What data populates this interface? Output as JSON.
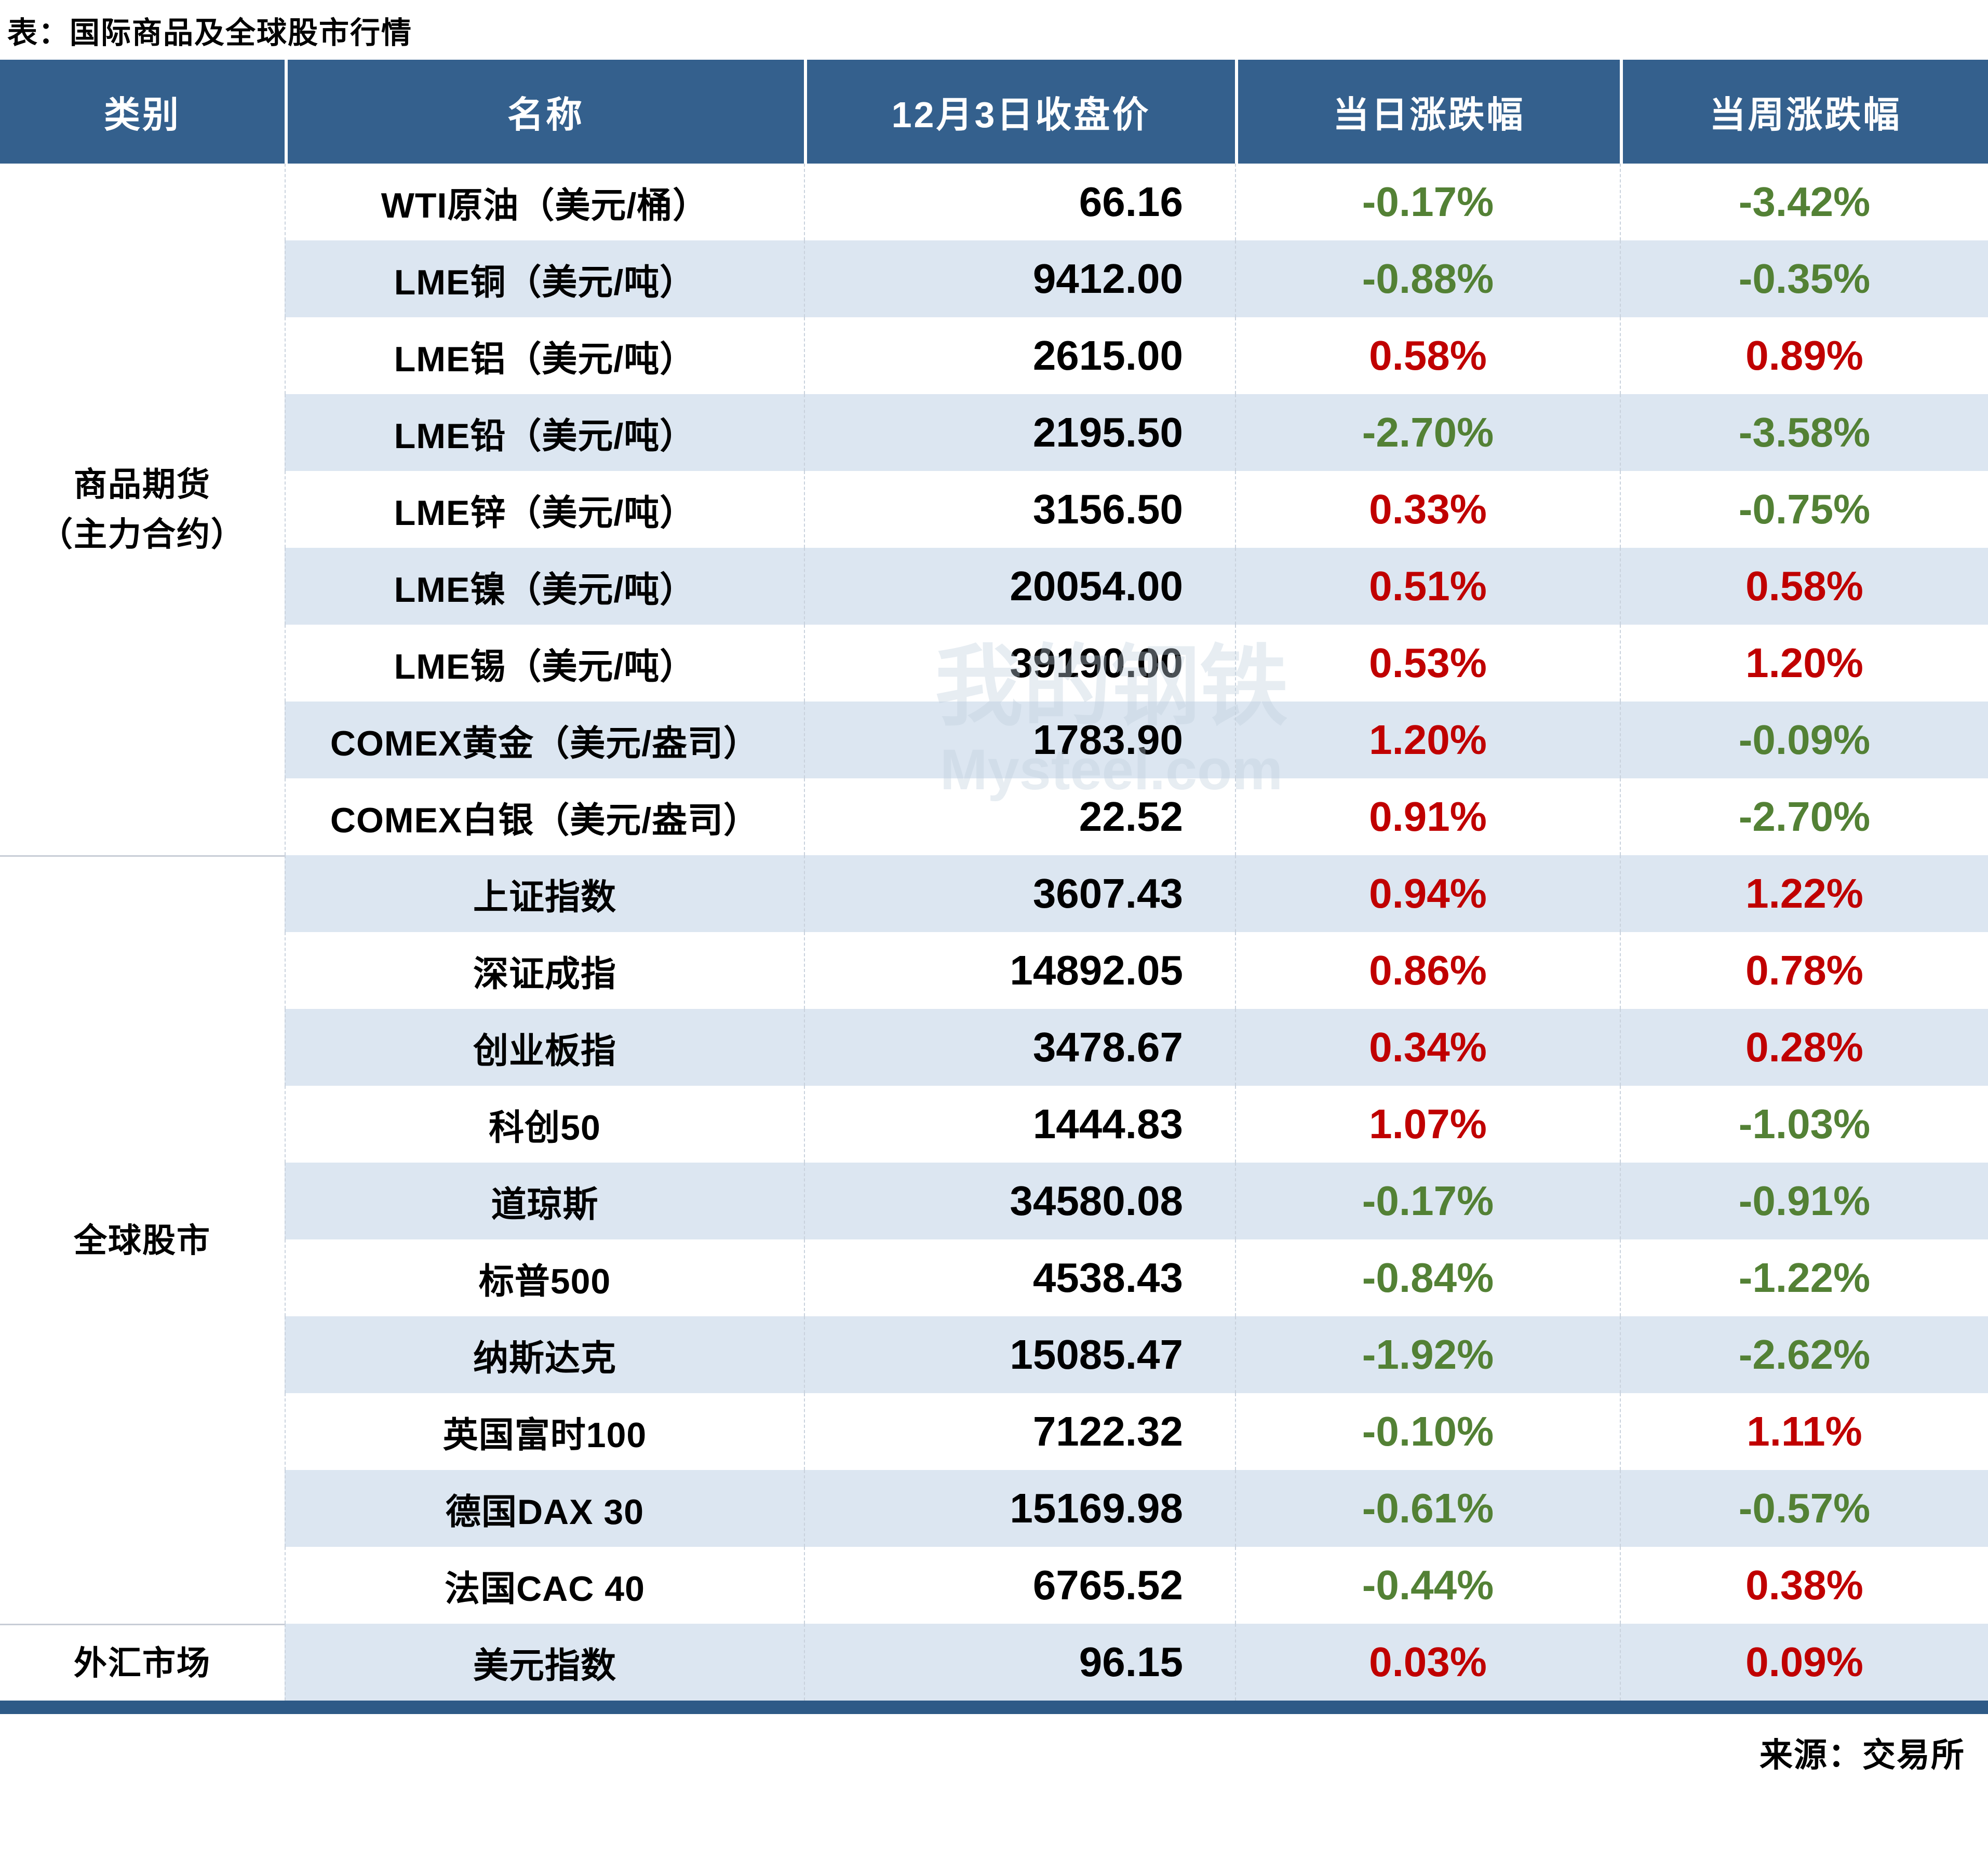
{
  "chart_data": {
    "type": "table",
    "title": "表：国际商品及全球股市行情",
    "columns": [
      "类别",
      "名称",
      "12月3日收盘价",
      "当日涨跌幅",
      "当周涨跌幅"
    ],
    "groups": [
      {
        "label": "商品期货\n（主力合约）",
        "span": 9
      },
      {
        "label": "全球股市",
        "span": 10
      },
      {
        "label": "外汇市场",
        "span": 1
      }
    ],
    "rows": [
      {
        "name": "WTI原油（美元/桶）",
        "close": "66.16",
        "day": "-0.17%",
        "week": "-3.42%"
      },
      {
        "name": "LME铜（美元/吨）",
        "close": "9412.00",
        "day": "-0.88%",
        "week": "-0.35%"
      },
      {
        "name": "LME铝（美元/吨）",
        "close": "2615.00",
        "day": "0.58%",
        "week": "0.89%"
      },
      {
        "name": "LME铅（美元/吨）",
        "close": "2195.50",
        "day": "-2.70%",
        "week": "-3.58%"
      },
      {
        "name": "LME锌（美元/吨）",
        "close": "3156.50",
        "day": "0.33%",
        "week": "-0.75%"
      },
      {
        "name": "LME镍（美元/吨）",
        "close": "20054.00",
        "day": "0.51%",
        "week": "0.58%"
      },
      {
        "name": "LME锡（美元/吨）",
        "close": "39190.00",
        "day": "0.53%",
        "week": "1.20%"
      },
      {
        "name": "COMEX黄金（美元/盎司）",
        "close": "1783.90",
        "day": "1.20%",
        "week": "-0.09%"
      },
      {
        "name": "COMEX白银（美元/盎司）",
        "close": "22.52",
        "day": "0.91%",
        "week": "-2.70%"
      },
      {
        "name": "上证指数",
        "close": "3607.43",
        "day": "0.94%",
        "week": "1.22%"
      },
      {
        "name": "深证成指",
        "close": "14892.05",
        "day": "0.86%",
        "week": "0.78%"
      },
      {
        "name": "创业板指",
        "close": "3478.67",
        "day": "0.34%",
        "week": "0.28%"
      },
      {
        "name": "科创50",
        "close": "1444.83",
        "day": "1.07%",
        "week": "-1.03%"
      },
      {
        "name": "道琼斯",
        "close": "34580.08",
        "day": "-0.17%",
        "week": "-0.91%"
      },
      {
        "name": "标普500",
        "close": "4538.43",
        "day": "-0.84%",
        "week": "-1.22%"
      },
      {
        "name": "纳斯达克",
        "close": "15085.47",
        "day": "-1.92%",
        "week": "-2.62%"
      },
      {
        "name": "英国富时100",
        "close": "7122.32",
        "day": "-0.10%",
        "week": "1.11%"
      },
      {
        "name": "德国DAX 30",
        "close": "15169.98",
        "day": "-0.61%",
        "week": "-0.57%"
      },
      {
        "name": "法国CAC 40",
        "close": "6765.52",
        "day": "-0.44%",
        "week": "0.38%"
      },
      {
        "name": "美元指数",
        "close": "96.15",
        "day": "0.03%",
        "week": "0.09%"
      }
    ]
  },
  "footer": {
    "source": "来源：交易所"
  },
  "watermark": {
    "line1": "我的钢铁",
    "line2": "Mysteel.com"
  },
  "colors": {
    "header_bg": "#34608d",
    "stripe_bg": "#dce6f1",
    "positive_red": "#c00000",
    "negative_green": "#538135",
    "bottom_bar": "#2e5a87"
  }
}
